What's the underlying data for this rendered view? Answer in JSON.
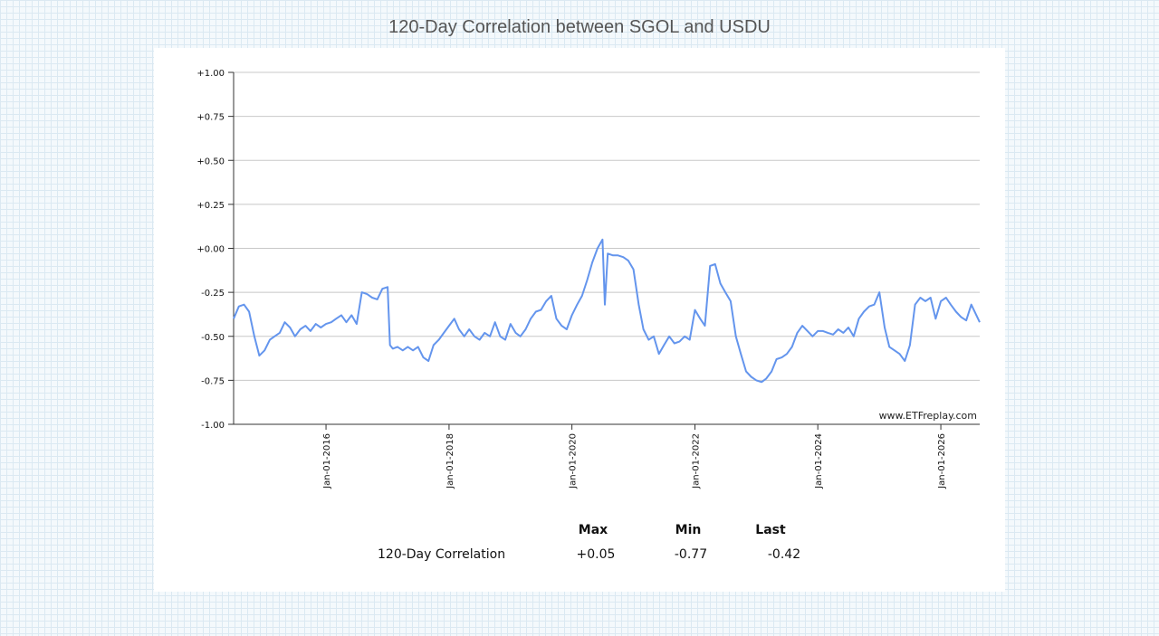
{
  "title": "120-Day Correlation between SGOL and USDU",
  "watermark": "www.ETFreplay.com",
  "stats": {
    "headers": [
      "Max",
      "Min",
      "Last"
    ],
    "row_label": "120-Day Correlation",
    "values": [
      "+0.05",
      "-0.77",
      "-0.42"
    ]
  },
  "chart_data": {
    "type": "line",
    "title": "120-Day Correlation between SGOL and USDU",
    "xlabel": "",
    "ylabel": "",
    "ylim": [
      -1.0,
      1.0
    ],
    "xlim": [
      "2014-07-01",
      "2026-08-20"
    ],
    "grid": true,
    "line_color": "#6495ed",
    "y_ticks": [
      {
        "value": 1.0,
        "label": "+1.00"
      },
      {
        "value": 0.75,
        "label": "+0.75"
      },
      {
        "value": 0.5,
        "label": "+0.50"
      },
      {
        "value": 0.25,
        "label": "+0.25"
      },
      {
        "value": 0.0,
        "label": "+0.00"
      },
      {
        "value": -0.25,
        "label": "-0.25"
      },
      {
        "value": -0.5,
        "label": "-0.50"
      },
      {
        "value": -0.75,
        "label": "-0.75"
      },
      {
        "value": -1.0,
        "label": "-1.00"
      }
    ],
    "x_ticks": [
      {
        "date": "2016-01-01",
        "label": "Jan-01-2016"
      },
      {
        "date": "2018-01-01",
        "label": "Jan-01-2018"
      },
      {
        "date": "2020-01-01",
        "label": "Jan-01-2020"
      },
      {
        "date": "2022-01-01",
        "label": "Jan-01-2022"
      },
      {
        "date": "2024-01-01",
        "label": "Jan-01-2024"
      },
      {
        "date": "2026-01-01",
        "label": "Jan-01-2026"
      }
    ],
    "series": [
      {
        "points": [
          [
            "2014-07-01",
            -0.4
          ],
          [
            "2014-08-01",
            -0.33
          ],
          [
            "2014-09-01",
            -0.32
          ],
          [
            "2014-10-01",
            -0.36
          ],
          [
            "2014-11-01",
            -0.5
          ],
          [
            "2014-12-01",
            -0.61
          ],
          [
            "2015-01-01",
            -0.58
          ],
          [
            "2015-02-01",
            -0.52
          ],
          [
            "2015-03-01",
            -0.5
          ],
          [
            "2015-04-01",
            -0.48
          ],
          [
            "2015-05-01",
            -0.42
          ],
          [
            "2015-06-01",
            -0.45
          ],
          [
            "2015-07-01",
            -0.5
          ],
          [
            "2015-08-01",
            -0.46
          ],
          [
            "2015-09-01",
            -0.44
          ],
          [
            "2015-10-01",
            -0.47
          ],
          [
            "2015-11-01",
            -0.43
          ],
          [
            "2015-12-01",
            -0.45
          ],
          [
            "2016-01-01",
            -0.43
          ],
          [
            "2016-02-01",
            -0.42
          ],
          [
            "2016-03-01",
            -0.4
          ],
          [
            "2016-04-01",
            -0.38
          ],
          [
            "2016-05-01",
            -0.42
          ],
          [
            "2016-06-01",
            -0.38
          ],
          [
            "2016-07-01",
            -0.43
          ],
          [
            "2016-08-01",
            -0.25
          ],
          [
            "2016-09-01",
            -0.26
          ],
          [
            "2016-10-01",
            -0.28
          ],
          [
            "2016-11-01",
            -0.29
          ],
          [
            "2016-12-01",
            -0.23
          ],
          [
            "2017-01-01",
            -0.22
          ],
          [
            "2017-01-15",
            -0.55
          ],
          [
            "2017-02-01",
            -0.57
          ],
          [
            "2017-03-01",
            -0.56
          ],
          [
            "2017-04-01",
            -0.58
          ],
          [
            "2017-05-01",
            -0.56
          ],
          [
            "2017-06-01",
            -0.58
          ],
          [
            "2017-07-01",
            -0.56
          ],
          [
            "2017-08-01",
            -0.62
          ],
          [
            "2017-09-01",
            -0.64
          ],
          [
            "2017-10-01",
            -0.55
          ],
          [
            "2017-11-01",
            -0.52
          ],
          [
            "2017-12-01",
            -0.48
          ],
          [
            "2018-01-01",
            -0.44
          ],
          [
            "2018-02-01",
            -0.4
          ],
          [
            "2018-03-01",
            -0.46
          ],
          [
            "2018-04-01",
            -0.5
          ],
          [
            "2018-05-01",
            -0.46
          ],
          [
            "2018-06-01",
            -0.5
          ],
          [
            "2018-07-01",
            -0.52
          ],
          [
            "2018-08-01",
            -0.48
          ],
          [
            "2018-09-01",
            -0.5
          ],
          [
            "2018-10-01",
            -0.42
          ],
          [
            "2018-11-01",
            -0.5
          ],
          [
            "2018-12-01",
            -0.52
          ],
          [
            "2019-01-01",
            -0.43
          ],
          [
            "2019-02-01",
            -0.48
          ],
          [
            "2019-03-01",
            -0.5
          ],
          [
            "2019-04-01",
            -0.46
          ],
          [
            "2019-05-01",
            -0.4
          ],
          [
            "2019-06-01",
            -0.36
          ],
          [
            "2019-07-01",
            -0.35
          ],
          [
            "2019-08-01",
            -0.3
          ],
          [
            "2019-09-01",
            -0.27
          ],
          [
            "2019-10-01",
            -0.4
          ],
          [
            "2019-11-01",
            -0.44
          ],
          [
            "2019-12-01",
            -0.46
          ],
          [
            "2020-01-01",
            -0.38
          ],
          [
            "2020-02-01",
            -0.32
          ],
          [
            "2020-03-01",
            -0.27
          ],
          [
            "2020-04-01",
            -0.18
          ],
          [
            "2020-05-01",
            -0.08
          ],
          [
            "2020-06-01",
            0.0
          ],
          [
            "2020-07-01",
            0.05
          ],
          [
            "2020-07-15",
            -0.32
          ],
          [
            "2020-08-01",
            -0.03
          ],
          [
            "2020-09-01",
            -0.04
          ],
          [
            "2020-10-01",
            -0.04
          ],
          [
            "2020-11-01",
            -0.05
          ],
          [
            "2020-12-01",
            -0.07
          ],
          [
            "2021-01-01",
            -0.12
          ],
          [
            "2021-02-01",
            -0.32
          ],
          [
            "2021-03-01",
            -0.46
          ],
          [
            "2021-04-01",
            -0.52
          ],
          [
            "2021-05-01",
            -0.5
          ],
          [
            "2021-06-01",
            -0.6
          ],
          [
            "2021-07-01",
            -0.55
          ],
          [
            "2021-08-01",
            -0.5
          ],
          [
            "2021-09-01",
            -0.54
          ],
          [
            "2021-10-01",
            -0.53
          ],
          [
            "2021-11-01",
            -0.5
          ],
          [
            "2021-12-01",
            -0.52
          ],
          [
            "2022-01-01",
            -0.35
          ],
          [
            "2022-02-01",
            -0.4
          ],
          [
            "2022-03-01",
            -0.44
          ],
          [
            "2022-04-01",
            -0.1
          ],
          [
            "2022-05-01",
            -0.09
          ],
          [
            "2022-06-01",
            -0.2
          ],
          [
            "2022-07-01",
            -0.25
          ],
          [
            "2022-08-01",
            -0.3
          ],
          [
            "2022-09-01",
            -0.5
          ],
          [
            "2022-10-01",
            -0.6
          ],
          [
            "2022-11-01",
            -0.7
          ],
          [
            "2022-12-01",
            -0.73
          ],
          [
            "2023-01-01",
            -0.75
          ],
          [
            "2023-02-01",
            -0.76
          ],
          [
            "2023-03-01",
            -0.74
          ],
          [
            "2023-04-01",
            -0.7
          ],
          [
            "2023-05-01",
            -0.63
          ],
          [
            "2023-06-01",
            -0.62
          ],
          [
            "2023-07-01",
            -0.6
          ],
          [
            "2023-08-01",
            -0.56
          ],
          [
            "2023-09-01",
            -0.48
          ],
          [
            "2023-10-01",
            -0.44
          ],
          [
            "2023-11-01",
            -0.47
          ],
          [
            "2023-12-01",
            -0.5
          ],
          [
            "2024-01-01",
            -0.47
          ],
          [
            "2024-02-01",
            -0.47
          ],
          [
            "2024-03-01",
            -0.48
          ],
          [
            "2024-04-01",
            -0.49
          ],
          [
            "2024-05-01",
            -0.46
          ],
          [
            "2024-06-01",
            -0.48
          ],
          [
            "2024-07-01",
            -0.45
          ],
          [
            "2024-08-01",
            -0.5
          ],
          [
            "2024-09-01",
            -0.4
          ],
          [
            "2024-10-01",
            -0.36
          ],
          [
            "2024-11-01",
            -0.33
          ],
          [
            "2024-12-01",
            -0.32
          ],
          [
            "2025-01-01",
            -0.25
          ],
          [
            "2025-02-01",
            -0.45
          ],
          [
            "2025-03-01",
            -0.56
          ],
          [
            "2025-04-01",
            -0.58
          ],
          [
            "2025-05-01",
            -0.6
          ],
          [
            "2025-06-01",
            -0.64
          ],
          [
            "2025-07-01",
            -0.55
          ],
          [
            "2025-08-01",
            -0.32
          ],
          [
            "2025-09-01",
            -0.28
          ],
          [
            "2025-10-01",
            -0.3
          ],
          [
            "2025-11-01",
            -0.28
          ],
          [
            "2025-12-01",
            -0.4
          ],
          [
            "2026-01-01",
            -0.3
          ],
          [
            "2026-02-01",
            -0.28
          ],
          [
            "2026-03-01",
            -0.32
          ],
          [
            "2026-04-01",
            -0.36
          ],
          [
            "2026-05-01",
            -0.39
          ],
          [
            "2026-06-01",
            -0.41
          ],
          [
            "2026-07-01",
            -0.32
          ],
          [
            "2026-08-20",
            -0.42
          ]
        ]
      }
    ]
  }
}
